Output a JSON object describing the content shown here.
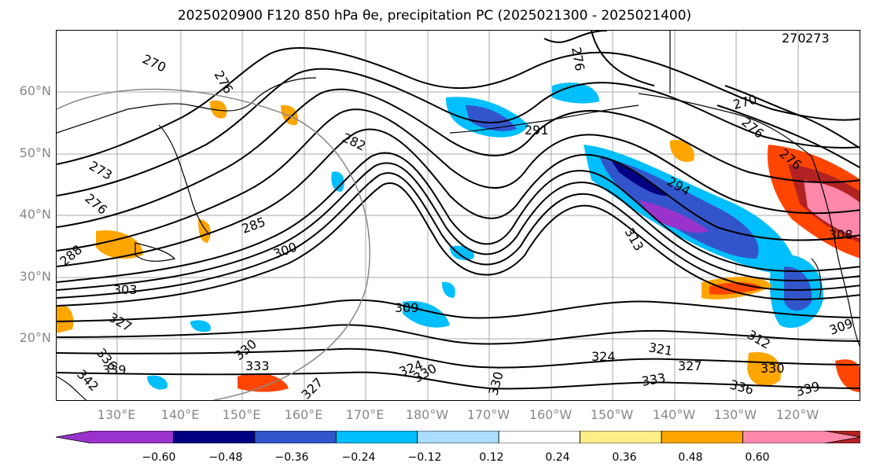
{
  "title": "2025020900 F120 850 hPa θe, precipitation PC (2025021300 - 2025021400)",
  "lat_labels": [
    "60°N",
    "50°N",
    "40°N",
    "30°N",
    "20°N"
  ],
  "lon_labels": [
    "130°E",
    "140°E",
    "150°E",
    "160°E",
    "170°E",
    "180°W",
    "170°W",
    "160°W",
    "150°W",
    "140°W",
    "130°W",
    "120°W"
  ],
  "contour_labels": [
    "270",
    "276",
    "273",
    "276",
    "282",
    "285",
    "300",
    "288",
    "303",
    "327",
    "336",
    "339",
    "342",
    "330",
    "333",
    "327",
    "324",
    "330",
    "330",
    "309",
    "291",
    "294",
    "313",
    "276",
    "270",
    "276",
    "270",
    "273",
    "276",
    "308",
    "309",
    "312",
    "321",
    "324",
    "327",
    "330",
    "333",
    "336",
    "339"
  ],
  "colorbar": {
    "colors": [
      "#9933cc",
      "#000080",
      "#3355cc",
      "#00bfff",
      "#aaddff",
      "#ffffff",
      "#ffee88",
      "#ffa500",
      "#ff4500",
      "#b22222",
      "#ff88aa"
    ],
    "ticks": [
      "−0.60",
      "−0.48",
      "−0.36",
      "−0.24",
      "−0.12",
      "0.12",
      "0.24",
      "0.36",
      "0.48",
      "0.60"
    ]
  }
}
